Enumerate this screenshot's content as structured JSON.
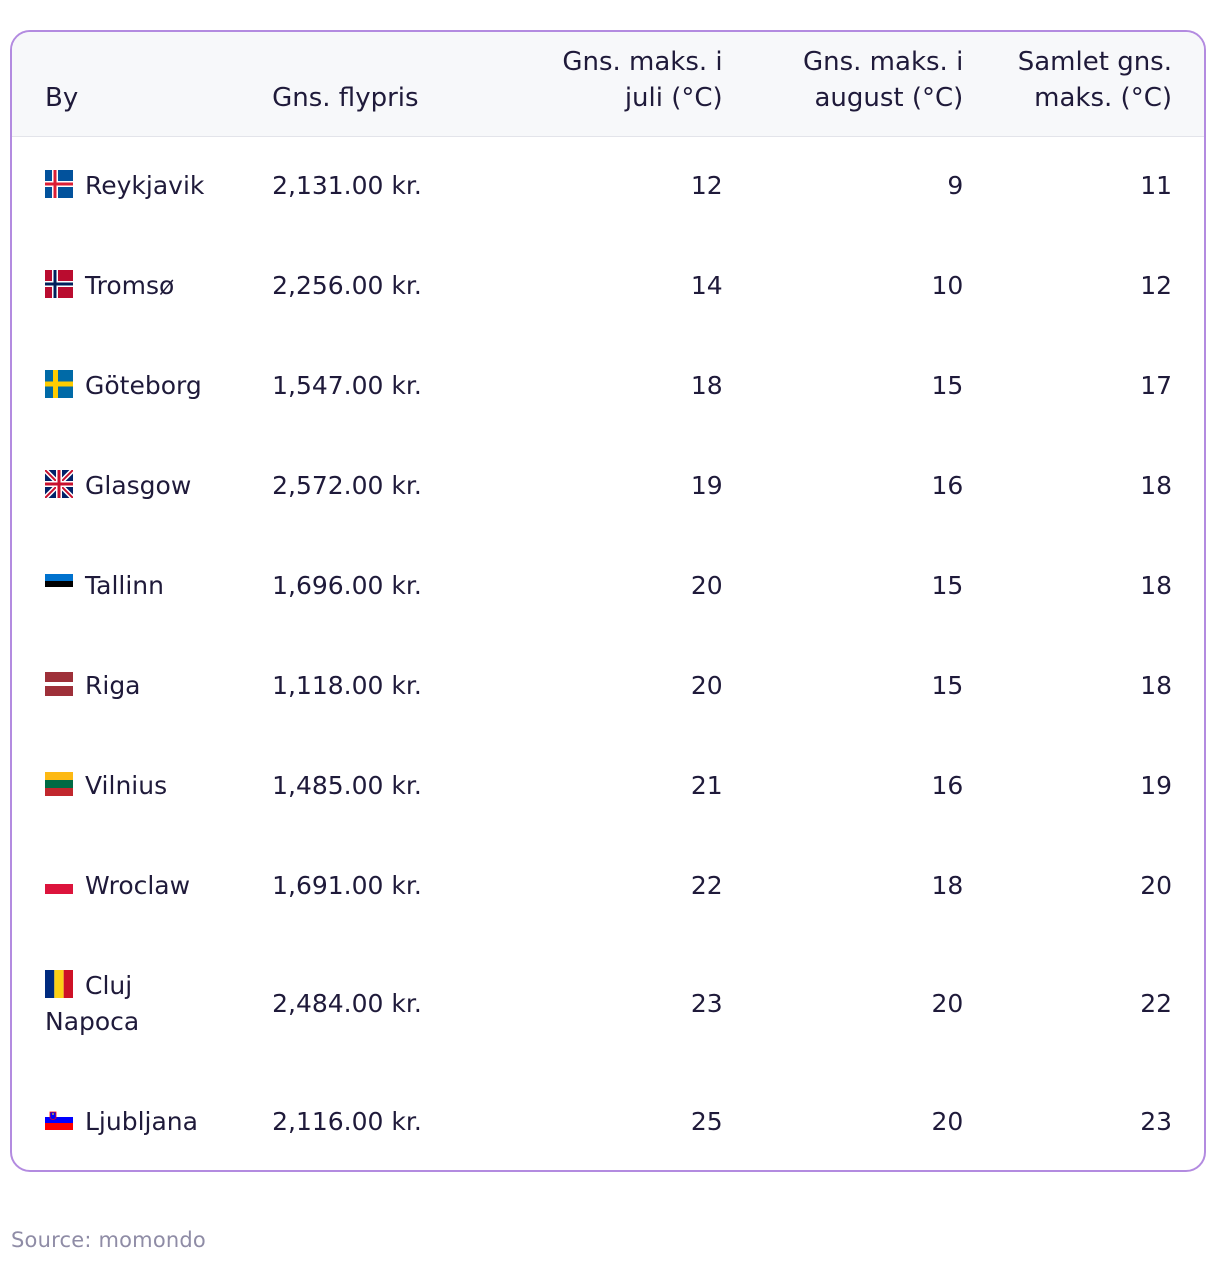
{
  "table": {
    "headers": {
      "city": "By",
      "price": "Gns. flypris",
      "july_line1": "Gns. maks. i",
      "july_line2": "juli (°C)",
      "august_line1": "Gns. maks. i",
      "august_line2": "august (°C)",
      "overall_line1": "Samlet gns.",
      "overall_line2": "maks. (°C)"
    },
    "rows": [
      {
        "city": "Reykjavik",
        "flag_icon": "iceland-flag-icon",
        "price": "2,131.00 kr.",
        "july": "12",
        "august": "9",
        "overall": "11"
      },
      {
        "city": "Tromsø",
        "flag_icon": "norway-flag-icon",
        "price": "2,256.00 kr.",
        "july": "14",
        "august": "10",
        "overall": "12"
      },
      {
        "city": "Göteborg",
        "flag_icon": "sweden-flag-icon",
        "price": "1,547.00 kr.",
        "july": "18",
        "august": "15",
        "overall": "17"
      },
      {
        "city": "Glasgow",
        "flag_icon": "uk-flag-icon",
        "price": "2,572.00 kr.",
        "july": "19",
        "august": "16",
        "overall": "18"
      },
      {
        "city": "Tallinn",
        "flag_icon": "estonia-flag-icon",
        "price": "1,696.00 kr.",
        "july": "20",
        "august": "15",
        "overall": "18"
      },
      {
        "city": "Riga",
        "flag_icon": "latvia-flag-icon",
        "price": "1,118.00 kr.",
        "july": "20",
        "august": "15",
        "overall": "18"
      },
      {
        "city": "Vilnius",
        "flag_icon": "lithuania-flag-icon",
        "price": "1,485.00 kr.",
        "july": "21",
        "august": "16",
        "overall": "19"
      },
      {
        "city": "Wroclaw",
        "flag_icon": "poland-flag-icon",
        "price": "1,691.00 kr.",
        "july": "22",
        "august": "18",
        "overall": "20"
      },
      {
        "city": "Cluj Napoca",
        "flag_icon": "romania-flag-icon",
        "price": "2,484.00 kr.",
        "july": "23",
        "august": "20",
        "overall": "22"
      },
      {
        "city": "Ljubljana",
        "flag_icon": "slovenia-flag-icon",
        "price": "2,116.00 kr.",
        "july": "25",
        "august": "20",
        "overall": "23"
      }
    ]
  },
  "colors": {
    "border": "#b38be0",
    "header_bg": "#f7f8fa",
    "text": "#1f1a3a",
    "source_text": "#8f8ca6"
  },
  "source": "Source: momondo"
}
